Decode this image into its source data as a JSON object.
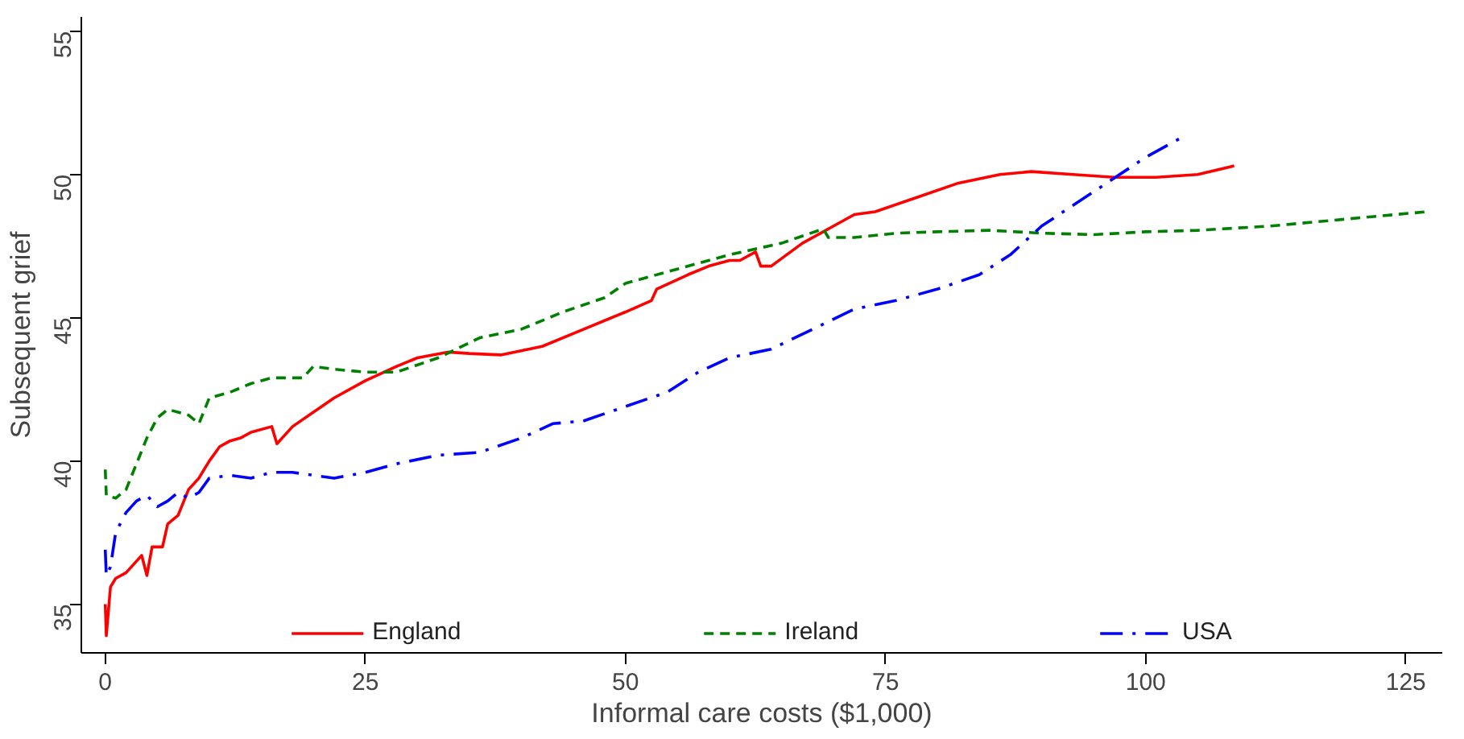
{
  "chart_data": {
    "type": "line",
    "xlabel": "Informal care costs ($1,000)",
    "ylabel": "Subsequent grief",
    "xlim": [
      -2.3,
      128.5
    ],
    "ylim": [
      33.3,
      55.5
    ],
    "xticks": [
      0,
      25,
      50,
      75,
      100,
      125
    ],
    "yticks": [
      35,
      40,
      45,
      50,
      55
    ],
    "grid": false,
    "legend": "bottom",
    "marker": "none",
    "series": [
      {
        "name": "England",
        "color": "#ff0000",
        "line_style": "solid",
        "x": [
          0,
          0.1,
          0.5,
          1,
          2,
          3,
          3.5,
          4,
          4.5,
          5.5,
          6,
          7,
          8,
          9,
          10,
          11,
          12,
          13,
          14,
          16,
          16.5,
          18,
          20,
          22,
          25,
          28,
          30,
          33,
          35,
          38,
          42,
          46,
          50,
          52.5,
          53,
          56,
          58,
          60,
          61,
          62.5,
          63,
          64,
          67,
          70,
          72,
          74,
          78,
          82,
          86,
          89,
          93,
          97,
          101,
          105,
          108.5
        ],
        "values": [
          35.0,
          33.9,
          35.6,
          35.9,
          36.1,
          36.5,
          36.7,
          36.0,
          37.0,
          37.0,
          37.8,
          38.1,
          39.0,
          39.4,
          40.0,
          40.5,
          40.7,
          40.8,
          41.0,
          41.2,
          40.6,
          41.2,
          41.7,
          42.2,
          42.8,
          43.3,
          43.6,
          43.8,
          43.75,
          43.7,
          44.0,
          44.6,
          45.2,
          45.6,
          46.0,
          46.5,
          46.8,
          47.0,
          47.0,
          47.3,
          46.8,
          46.8,
          47.6,
          48.2,
          48.6,
          48.7,
          49.2,
          49.7,
          50.0,
          50.1,
          50.0,
          49.9,
          49.9,
          50.0,
          50.3
        ]
      },
      {
        "name": "Ireland",
        "color": "#008000",
        "line_style": "dashed",
        "x": [
          0,
          0.1,
          1,
          2,
          3,
          4,
          5,
          6,
          7,
          8,
          9,
          10,
          12,
          14,
          16,
          19,
          20,
          22,
          25,
          28,
          32,
          36,
          40,
          44,
          48,
          50,
          55,
          60,
          65,
          69,
          69.5,
          72,
          76,
          80,
          85,
          90,
          95,
          100,
          105,
          112,
          118,
          127
        ],
        "values": [
          39.7,
          38.8,
          38.7,
          39.0,
          39.9,
          40.8,
          41.5,
          41.8,
          41.7,
          41.6,
          41.3,
          42.2,
          42.4,
          42.7,
          42.9,
          42.9,
          43.3,
          43.2,
          43.1,
          43.1,
          43.6,
          44.3,
          44.6,
          45.2,
          45.7,
          46.2,
          46.7,
          47.2,
          47.6,
          48.1,
          47.8,
          47.8,
          47.95,
          48.0,
          48.05,
          47.95,
          47.9,
          48.0,
          48.05,
          48.2,
          48.4,
          48.7
        ]
      },
      {
        "name": "USA",
        "color": "#0000ff",
        "line_style": "dashdot",
        "x": [
          0,
          0.1,
          0.5,
          1,
          2,
          3,
          4,
          5,
          6,
          7,
          8,
          9,
          10,
          12,
          14,
          16,
          18,
          20,
          22,
          25,
          28,
          32,
          36,
          40,
          43,
          46,
          50,
          54,
          57,
          60,
          64,
          68,
          72,
          76,
          80,
          84,
          87,
          90,
          95,
          100,
          103.5
        ],
        "values": [
          36.9,
          36.0,
          36.3,
          37.5,
          38.2,
          38.6,
          38.8,
          38.4,
          38.6,
          38.9,
          38.7,
          38.9,
          39.4,
          39.5,
          39.4,
          39.6,
          39.6,
          39.5,
          39.4,
          39.6,
          39.9,
          40.2,
          40.3,
          40.8,
          41.3,
          41.4,
          41.9,
          42.4,
          43.1,
          43.6,
          43.9,
          44.6,
          45.3,
          45.6,
          46.0,
          46.5,
          47.2,
          48.2,
          49.4,
          50.6,
          51.3
        ]
      }
    ]
  }
}
